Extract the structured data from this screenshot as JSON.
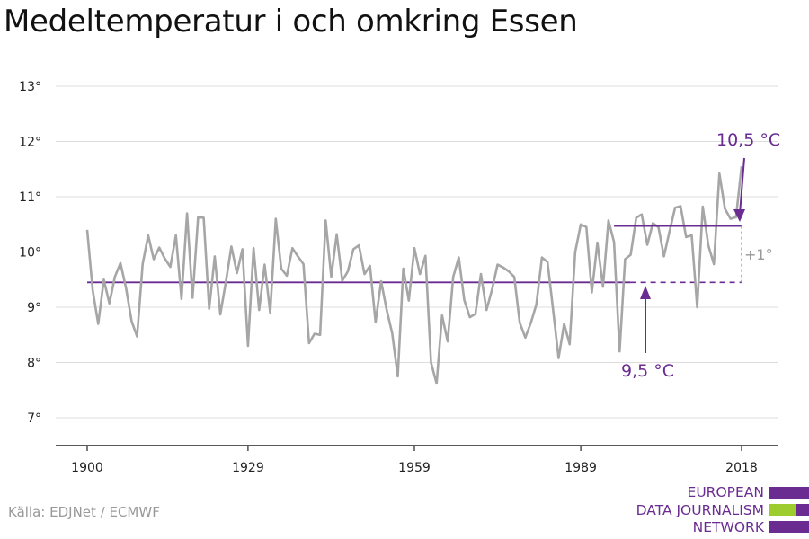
{
  "title": "Medeltemperatur i och omkring Essen",
  "source": "Källa: EDJNet / ECMWF",
  "logo": {
    "lines": [
      "EUROPEAN",
      "DATA JOURNALISM",
      "NETWORK"
    ]
  },
  "colors": {
    "series": "#a6a6a6",
    "accent": "#6a2c91",
    "logo_green": "#9ccc2e",
    "grid": "#dddddd"
  },
  "chart_data": {
    "type": "line",
    "title": "Medeltemperatur i och omkring Essen",
    "xlabel": "",
    "ylabel": "",
    "xlim": [
      1900,
      2018
    ],
    "ylim": [
      6.5,
      13.3
    ],
    "grid": true,
    "x_ticks": [
      1900,
      1929,
      1959,
      1989,
      2018
    ],
    "y_ticks": [
      {
        "value": 7,
        "label": "7°"
      },
      {
        "value": 8,
        "label": "8°"
      },
      {
        "value": 9,
        "label": "9°"
      },
      {
        "value": 10,
        "label": "10°"
      },
      {
        "value": 11,
        "label": "11°"
      },
      {
        "value": 12,
        "label": "12°"
      },
      {
        "value": 13,
        "label": "13°"
      }
    ],
    "series": [
      {
        "x": [
          1900,
          1901,
          1902,
          1903,
          1904,
          1905,
          1906,
          1907,
          1908,
          1909,
          1910,
          1911,
          1912,
          1913,
          1914,
          1915,
          1916,
          1917,
          1918,
          1919,
          1920,
          1921,
          1922,
          1923,
          1924,
          1925,
          1926,
          1927,
          1928,
          1929,
          1930,
          1931,
          1932,
          1933,
          1934,
          1935,
          1936,
          1937,
          1938,
          1939,
          1940,
          1941,
          1942,
          1943,
          1944,
          1945,
          1946,
          1947,
          1948,
          1949,
          1950,
          1951,
          1952,
          1953,
          1954,
          1955,
          1956,
          1957,
          1958,
          1959,
          1960,
          1961,
          1962,
          1963,
          1964,
          1965,
          1966,
          1967,
          1968,
          1969,
          1970,
          1971,
          1972,
          1973,
          1974,
          1975,
          1976,
          1977,
          1978,
          1979,
          1980,
          1981,
          1982,
          1983,
          1984,
          1985,
          1986,
          1987,
          1988,
          1989,
          1990,
          1991,
          1992,
          1993,
          1994,
          1995,
          1996,
          1997,
          1998,
          1999,
          2000,
          2001,
          2002,
          2003,
          2004,
          2005,
          2006,
          2007,
          2008,
          2009,
          2010,
          2011,
          2012,
          2013,
          2014,
          2015,
          2016,
          2017,
          2018
        ],
        "values": [
          10.4,
          9.3,
          8.7,
          9.5,
          9.07,
          9.55,
          9.8,
          9.35,
          8.75,
          8.47,
          9.78,
          10.3,
          9.87,
          10.08,
          9.88,
          9.73,
          10.3,
          9.15,
          10.7,
          9.17,
          10.63,
          10.62,
          8.97,
          9.92,
          8.87,
          9.45,
          10.1,
          9.62,
          10.05,
          8.3,
          10.07,
          8.95,
          9.77,
          8.9,
          10.6,
          9.7,
          9.57,
          10.07,
          9.92,
          9.78,
          8.35,
          8.52,
          8.5,
          10.57,
          9.55,
          10.32,
          9.48,
          9.65,
          10.05,
          10.12,
          9.6,
          9.75,
          8.73,
          9.47,
          8.95,
          8.53,
          7.75,
          9.7,
          9.12,
          10.07,
          9.6,
          9.93,
          8.0,
          7.62,
          8.85,
          8.38,
          9.55,
          9.9,
          9.13,
          8.82,
          8.88,
          9.6,
          8.95,
          9.32,
          9.77,
          9.72,
          9.65,
          9.55,
          8.72,
          8.45,
          8.72,
          9.05,
          9.9,
          9.82,
          8.97,
          8.08,
          8.7,
          8.33,
          10.0,
          10.5,
          10.45,
          9.27,
          10.17,
          9.37,
          10.57,
          10.18,
          8.2,
          9.87,
          9.95,
          10.62,
          10.68,
          10.13,
          10.52,
          10.45,
          9.92,
          10.37,
          10.8,
          10.83,
          10.27,
          10.3,
          9.0,
          10.82,
          10.12,
          9.78,
          11.42,
          10.78,
          10.6,
          10.63,
          11.55
        ]
      }
    ],
    "baseline": {
      "label": "9,5 °C",
      "value": 9.45,
      "from": 1900,
      "to": 2018
    },
    "recent_mean": {
      "label": "10,5 °C",
      "value": 10.47,
      "from": 1995,
      "to": 2018
    },
    "difference_label": "+1°"
  }
}
